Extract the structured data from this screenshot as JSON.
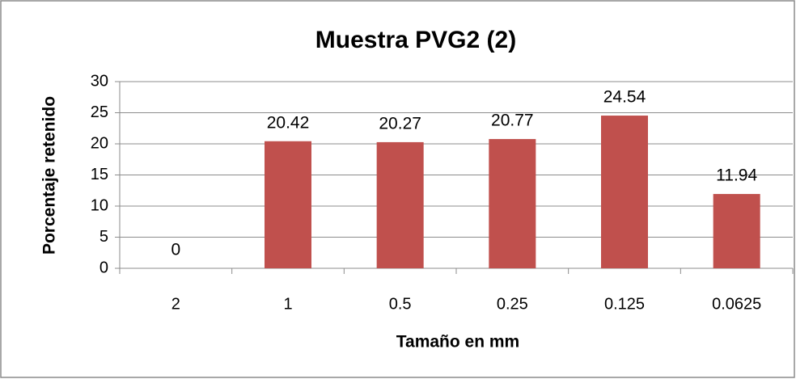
{
  "chart_data": {
    "type": "bar",
    "title": "Muestra PVG2 (2)",
    "x_label": "Tamaño en mm",
    "y_label": "Porcentaje retenido",
    "categories": [
      "2",
      "1",
      "0.5",
      "0.25",
      "0.125",
      "0.0625"
    ],
    "values": [
      0,
      20.42,
      20.27,
      20.77,
      24.54,
      11.94
    ],
    "color": "#c0504d",
    "ylim": [
      0,
      30
    ],
    "yticks": [
      0,
      5,
      10,
      15,
      20,
      25,
      30
    ],
    "grid": true
  }
}
